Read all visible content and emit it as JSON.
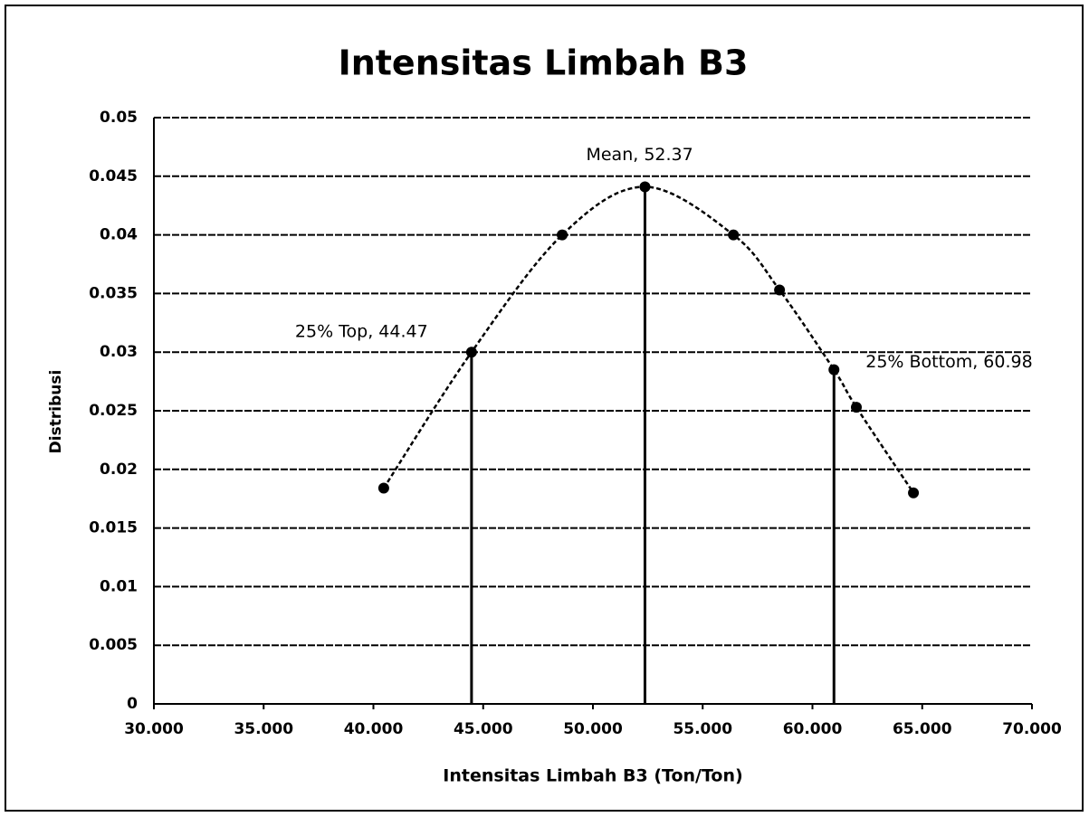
{
  "chart_data": {
    "type": "line",
    "title": "Intensitas Limbah B3",
    "x_label": "Intensitas Limbah B3 (Ton/Ton)",
    "y_label": "Distribusi",
    "series": [
      {
        "name": "Distribusi",
        "color": "#000000",
        "x": [
          40.47,
          44.47,
          48.6,
          52.37,
          56.4,
          58.5,
          60.98,
          62.0,
          64.6
        ],
        "values": [
          0.0184,
          0.03,
          0.04,
          0.0441,
          0.04,
          0.0353,
          0.0285,
          0.0253,
          0.018
        ]
      }
    ],
    "reference_lines": [
      {
        "x": 44.47,
        "y": 0.03,
        "label": "25% Top, 44.47"
      },
      {
        "x": 52.37,
        "y": 0.0441,
        "label": "Mean, 52.37"
      },
      {
        "x": 60.98,
        "y": 0.0285,
        "label": "25% Bottom, 60.98"
      }
    ],
    "xlim": [
      30,
      70
    ],
    "xticks": [
      {
        "value": 30,
        "label": "30.000"
      },
      {
        "value": 35,
        "label": "35.000"
      },
      {
        "value": 40,
        "label": "40.000"
      },
      {
        "value": 45,
        "label": "45.000"
      },
      {
        "value": 50,
        "label": "50.000"
      },
      {
        "value": 55,
        "label": "55.000"
      },
      {
        "value": 60,
        "label": "60.000"
      },
      {
        "value": 65,
        "label": "65.000"
      },
      {
        "value": 70,
        "label": "70.000"
      }
    ],
    "ylim": [
      0,
      0.05
    ],
    "yticks": [
      0,
      0.005,
      0.01,
      0.015,
      0.02,
      0.025,
      0.03,
      0.035,
      0.04,
      0.045,
      0.05
    ],
    "grid": true
  }
}
